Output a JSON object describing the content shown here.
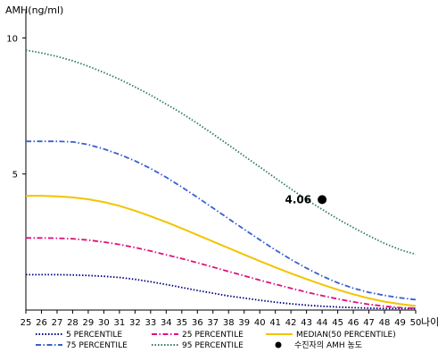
{
  "chart_data": {
    "type": "line",
    "title": "",
    "ylabel": "AMH(ng/ml)",
    "xlabel": "나이",
    "x": [
      25,
      26,
      27,
      28,
      29,
      30,
      31,
      32,
      33,
      34,
      35,
      36,
      37,
      38,
      39,
      40,
      41,
      42,
      43,
      44,
      45,
      46,
      47,
      48,
      49,
      50
    ],
    "xlim": [
      25,
      50
    ],
    "ylim": [
      0,
      11
    ],
    "y_ticks": [
      5,
      10
    ],
    "grid": false,
    "legend_position": "bottom",
    "series": [
      {
        "name": "5 PERCENTILE",
        "color": "#000080",
        "dash": "dotted",
        "values": [
          1.3,
          1.3,
          1.3,
          1.29,
          1.27,
          1.24,
          1.2,
          1.13,
          1.04,
          0.94,
          0.83,
          0.72,
          0.62,
          0.52,
          0.44,
          0.36,
          0.29,
          0.23,
          0.18,
          0.14,
          0.11,
          0.09,
          0.07,
          0.06,
          0.06,
          0.06
        ]
      },
      {
        "name": "25 PERCENTILE",
        "color": "#e0107a",
        "dash": "dashdot",
        "values": [
          2.65,
          2.65,
          2.64,
          2.62,
          2.57,
          2.5,
          2.41,
          2.3,
          2.17,
          2.03,
          1.89,
          1.74,
          1.58,
          1.42,
          1.26,
          1.1,
          0.95,
          0.8,
          0.66,
          0.53,
          0.41,
          0.3,
          0.21,
          0.14,
          0.09,
          0.07
        ]
      },
      {
        "name": "MEDIAN(50 PERCENTILE)",
        "color": "#f2c400",
        "dash": "solid",
        "values": [
          4.2,
          4.2,
          4.18,
          4.14,
          4.07,
          3.97,
          3.83,
          3.65,
          3.45,
          3.23,
          3.0,
          2.76,
          2.52,
          2.28,
          2.04,
          1.8,
          1.57,
          1.35,
          1.14,
          0.94,
          0.75,
          0.58,
          0.43,
          0.31,
          0.22,
          0.15
        ]
      },
      {
        "name": "75 PERCENTILE",
        "color": "#3a5fcd",
        "dash": "dashdot",
        "values": [
          6.2,
          6.2,
          6.2,
          6.18,
          6.08,
          5.92,
          5.72,
          5.48,
          5.2,
          4.88,
          4.52,
          4.14,
          3.75,
          3.36,
          2.97,
          2.58,
          2.21,
          1.86,
          1.54,
          1.25,
          1.0,
          0.8,
          0.65,
          0.54,
          0.45,
          0.38
        ]
      },
      {
        "name": "95 PERCENTILE",
        "color": "#2e7d5b",
        "dash": "dotted",
        "values": [
          9.55,
          9.45,
          9.32,
          9.16,
          8.96,
          8.73,
          8.48,
          8.2,
          7.9,
          7.57,
          7.23,
          6.86,
          6.47,
          6.07,
          5.66,
          5.26,
          4.85,
          4.45,
          4.06,
          3.7,
          3.35,
          3.03,
          2.73,
          2.45,
          2.22,
          2.05
        ]
      }
    ],
    "patient_point": {
      "name": "수진자의 AMH 농도",
      "x": 44,
      "y": 4.06,
      "label": "4.06",
      "color": "#000000"
    }
  }
}
